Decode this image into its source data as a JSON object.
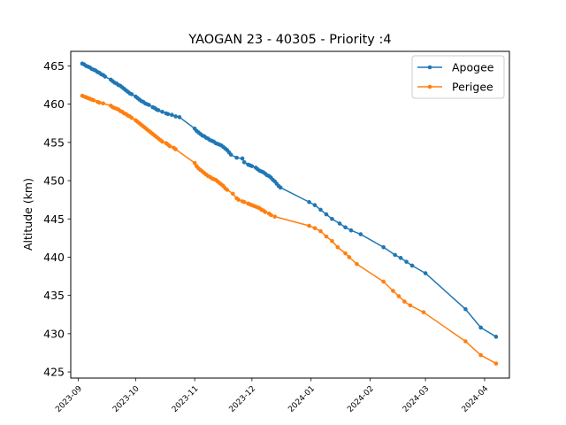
{
  "chart_data": {
    "type": "line",
    "title": "YAOGAN 23 - 40305 - Priority :4",
    "xlabel": "",
    "ylabel": "Altitude (km)",
    "x_type": "date",
    "xlim": [
      "2023-08-28",
      "2024-04-14"
    ],
    "ylim": [
      424.2,
      466.9
    ],
    "x_ticks": [
      "2023-09",
      "2023-10",
      "2023-11",
      "2023-12",
      "2024-01",
      "2024-02",
      "2024-03",
      "2024-04"
    ],
    "y_ticks": [
      425,
      430,
      435,
      440,
      445,
      450,
      455,
      460,
      465
    ],
    "grid": false,
    "legend_position": "top-right",
    "series": [
      {
        "name": "Apogee",
        "color": "#1f77b4",
        "points": [
          [
            "2023-09-03",
            465.3
          ],
          [
            "2023-09-04",
            465.2
          ],
          [
            "2023-09-05",
            465.0
          ],
          [
            "2023-09-06",
            464.9
          ],
          [
            "2023-09-07",
            464.8
          ],
          [
            "2023-09-08",
            464.6
          ],
          [
            "2023-09-09",
            464.5
          ],
          [
            "2023-09-10",
            464.4
          ],
          [
            "2023-09-11",
            464.2
          ],
          [
            "2023-09-12",
            464.1
          ],
          [
            "2023-09-13",
            463.9
          ],
          [
            "2023-09-14",
            463.8
          ],
          [
            "2023-09-15",
            463.6
          ],
          [
            "2023-09-18",
            463.2
          ],
          [
            "2023-09-19",
            463.0
          ],
          [
            "2023-09-20",
            462.8
          ],
          [
            "2023-09-21",
            462.7
          ],
          [
            "2023-09-22",
            462.5
          ],
          [
            "2023-09-23",
            462.4
          ],
          [
            "2023-09-24",
            462.2
          ],
          [
            "2023-09-25",
            462.0
          ],
          [
            "2023-09-26",
            461.8
          ],
          [
            "2023-09-27",
            461.6
          ],
          [
            "2023-09-28",
            461.4
          ],
          [
            "2023-09-29",
            461.3
          ],
          [
            "2023-10-01",
            461.0
          ],
          [
            "2023-10-02",
            460.8
          ],
          [
            "2023-10-03",
            460.6
          ],
          [
            "2023-10-04",
            460.4
          ],
          [
            "2023-10-05",
            460.3
          ],
          [
            "2023-10-06",
            460.1
          ],
          [
            "2023-10-07",
            460.0
          ],
          [
            "2023-10-08",
            459.9
          ],
          [
            "2023-10-10",
            459.6
          ],
          [
            "2023-10-11",
            459.5
          ],
          [
            "2023-10-12",
            459.3
          ],
          [
            "2023-10-13",
            459.2
          ],
          [
            "2023-10-15",
            459.0
          ],
          [
            "2023-10-17",
            458.8
          ],
          [
            "2023-10-18",
            458.7
          ],
          [
            "2023-10-20",
            458.6
          ],
          [
            "2023-10-22",
            458.4
          ],
          [
            "2023-10-24",
            458.3
          ],
          [
            "2023-11-01",
            456.8
          ],
          [
            "2023-11-02",
            456.5
          ],
          [
            "2023-11-03",
            456.3
          ],
          [
            "2023-11-04",
            456.1
          ],
          [
            "2023-11-05",
            455.9
          ],
          [
            "2023-11-06",
            455.8
          ],
          [
            "2023-11-07",
            455.6
          ],
          [
            "2023-11-08",
            455.5
          ],
          [
            "2023-11-09",
            455.3
          ],
          [
            "2023-11-10",
            455.2
          ],
          [
            "2023-11-11",
            455.1
          ],
          [
            "2023-11-12",
            454.9
          ],
          [
            "2023-11-13",
            454.8
          ],
          [
            "2023-11-14",
            454.7
          ],
          [
            "2023-11-15",
            454.6
          ],
          [
            "2023-11-16",
            454.4
          ],
          [
            "2023-11-17",
            454.2
          ],
          [
            "2023-11-18",
            454.0
          ],
          [
            "2023-11-19",
            453.7
          ],
          [
            "2023-11-20",
            453.4
          ],
          [
            "2023-11-23",
            453.0
          ],
          [
            "2023-11-26",
            452.9
          ],
          [
            "2023-11-27",
            452.4
          ],
          [
            "2023-11-29",
            452.1
          ],
          [
            "2023-11-30",
            452.0
          ],
          [
            "2023-12-01",
            451.9
          ],
          [
            "2023-12-03",
            451.7
          ],
          [
            "2023-12-04",
            451.5
          ],
          [
            "2023-12-05",
            451.3
          ],
          [
            "2023-12-06",
            451.2
          ],
          [
            "2023-12-07",
            451.1
          ],
          [
            "2023-12-08",
            450.9
          ],
          [
            "2023-12-09",
            450.7
          ],
          [
            "2023-12-10",
            450.6
          ],
          [
            "2023-12-11",
            450.4
          ],
          [
            "2023-12-12",
            450.1
          ],
          [
            "2023-12-13",
            449.9
          ],
          [
            "2023-12-14",
            449.6
          ],
          [
            "2023-12-15",
            449.3
          ],
          [
            "2023-12-16",
            449.1
          ],
          [
            "2023-12-31",
            447.2
          ],
          [
            "2024-01-03",
            446.8
          ],
          [
            "2024-01-06",
            446.2
          ],
          [
            "2024-01-09",
            445.6
          ],
          [
            "2024-01-12",
            445.0
          ],
          [
            "2024-01-16",
            444.4
          ],
          [
            "2024-01-19",
            443.9
          ],
          [
            "2024-01-22",
            443.5
          ],
          [
            "2024-01-27",
            443.0
          ],
          [
            "2024-02-08",
            441.3
          ],
          [
            "2024-02-14",
            440.3
          ],
          [
            "2024-02-17",
            439.9
          ],
          [
            "2024-02-20",
            439.4
          ],
          [
            "2024-02-23",
            438.9
          ],
          [
            "2024-03-01",
            437.9
          ],
          [
            "2024-03-22",
            433.2
          ],
          [
            "2024-03-30",
            430.8
          ],
          [
            "2024-04-07",
            429.6
          ]
        ]
      },
      {
        "name": "Perigee",
        "color": "#ff7f0e",
        "points": [
          [
            "2023-09-03",
            461.1
          ],
          [
            "2023-09-04",
            461.0
          ],
          [
            "2023-09-05",
            460.9
          ],
          [
            "2023-09-06",
            460.8
          ],
          [
            "2023-09-07",
            460.7
          ],
          [
            "2023-09-08",
            460.6
          ],
          [
            "2023-09-09",
            460.5
          ],
          [
            "2023-09-11",
            460.3
          ],
          [
            "2023-09-12",
            460.2
          ],
          [
            "2023-09-14",
            460.1
          ],
          [
            "2023-09-18",
            459.8
          ],
          [
            "2023-09-19",
            459.6
          ],
          [
            "2023-09-20",
            459.5
          ],
          [
            "2023-09-21",
            459.4
          ],
          [
            "2023-09-22",
            459.3
          ],
          [
            "2023-09-23",
            459.1
          ],
          [
            "2023-09-24",
            459.0
          ],
          [
            "2023-09-25",
            458.8
          ],
          [
            "2023-09-26",
            458.7
          ],
          [
            "2023-09-27",
            458.5
          ],
          [
            "2023-09-28",
            458.4
          ],
          [
            "2023-09-29",
            458.2
          ],
          [
            "2023-10-01",
            457.9
          ],
          [
            "2023-10-02",
            457.7
          ],
          [
            "2023-10-03",
            457.5
          ],
          [
            "2023-10-04",
            457.3
          ],
          [
            "2023-10-05",
            457.1
          ],
          [
            "2023-10-06",
            456.9
          ],
          [
            "2023-10-07",
            456.7
          ],
          [
            "2023-10-08",
            456.5
          ],
          [
            "2023-10-09",
            456.3
          ],
          [
            "2023-10-10",
            456.1
          ],
          [
            "2023-10-11",
            455.9
          ],
          [
            "2023-10-12",
            455.7
          ],
          [
            "2023-10-13",
            455.5
          ],
          [
            "2023-10-14",
            455.3
          ],
          [
            "2023-10-15",
            455.1
          ],
          [
            "2023-10-17",
            454.9
          ],
          [
            "2023-10-18",
            454.7
          ],
          [
            "2023-10-19",
            454.5
          ],
          [
            "2023-10-21",
            454.3
          ],
          [
            "2023-10-22",
            454.1
          ],
          [
            "2023-11-01",
            452.3
          ],
          [
            "2023-11-02",
            451.9
          ],
          [
            "2023-11-03",
            451.6
          ],
          [
            "2023-11-04",
            451.4
          ],
          [
            "2023-11-05",
            451.2
          ],
          [
            "2023-11-06",
            451.0
          ],
          [
            "2023-11-07",
            450.8
          ],
          [
            "2023-11-08",
            450.6
          ],
          [
            "2023-11-09",
            450.5
          ],
          [
            "2023-11-10",
            450.3
          ],
          [
            "2023-11-11",
            450.2
          ],
          [
            "2023-11-12",
            450.1
          ],
          [
            "2023-11-13",
            449.9
          ],
          [
            "2023-11-14",
            449.7
          ],
          [
            "2023-11-15",
            449.5
          ],
          [
            "2023-11-16",
            449.3
          ],
          [
            "2023-11-17",
            449.0
          ],
          [
            "2023-11-18",
            448.8
          ],
          [
            "2023-11-21",
            448.3
          ],
          [
            "2023-11-23",
            447.7
          ],
          [
            "2023-11-24",
            447.5
          ],
          [
            "2023-11-26",
            447.3
          ],
          [
            "2023-11-27",
            447.2
          ],
          [
            "2023-11-29",
            447.0
          ],
          [
            "2023-11-30",
            446.9
          ],
          [
            "2023-12-01",
            446.8
          ],
          [
            "2023-12-02",
            446.7
          ],
          [
            "2023-12-03",
            446.6
          ],
          [
            "2023-12-04",
            446.5
          ],
          [
            "2023-12-05",
            446.4
          ],
          [
            "2023-12-06",
            446.2
          ],
          [
            "2023-12-07",
            446.1
          ],
          [
            "2023-12-08",
            445.9
          ],
          [
            "2023-12-10",
            445.7
          ],
          [
            "2023-12-11",
            445.5
          ],
          [
            "2023-12-13",
            445.3
          ],
          [
            "2023-12-31",
            444.1
          ],
          [
            "2024-01-03",
            443.8
          ],
          [
            "2024-01-06",
            443.4
          ],
          [
            "2024-01-09",
            442.7
          ],
          [
            "2024-01-12",
            442.1
          ],
          [
            "2024-01-15",
            441.3
          ],
          [
            "2024-01-19",
            440.5
          ],
          [
            "2024-01-21",
            440.0
          ],
          [
            "2024-01-25",
            439.1
          ],
          [
            "2024-02-08",
            436.8
          ],
          [
            "2024-02-13",
            435.6
          ],
          [
            "2024-02-16",
            434.9
          ],
          [
            "2024-02-19",
            434.2
          ],
          [
            "2024-02-22",
            433.7
          ],
          [
            "2024-02-29",
            432.8
          ],
          [
            "2024-03-22",
            429.0
          ],
          [
            "2024-03-30",
            427.2
          ],
          [
            "2024-04-07",
            426.1
          ]
        ]
      }
    ]
  }
}
